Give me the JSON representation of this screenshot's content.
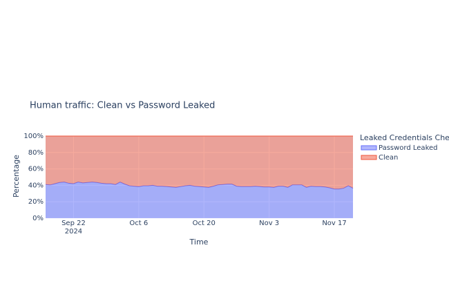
{
  "chart_data": {
    "type": "stacked-area",
    "title": "Human traffic: Clean vs Password Leaked",
    "x_label": "Time",
    "y_label": "Percentage",
    "legend_title": "Leaked Credentials Check",
    "legend": "right",
    "grid": true,
    "x": [
      "2024-09-16",
      "2024-09-17",
      "2024-09-18",
      "2024-09-19",
      "2024-09-20",
      "2024-09-21",
      "2024-09-22",
      "2024-09-23",
      "2024-09-24",
      "2024-09-25",
      "2024-09-26",
      "2024-09-27",
      "2024-09-28",
      "2024-09-29",
      "2024-09-30",
      "2024-10-01",
      "2024-10-02",
      "2024-10-03",
      "2024-10-04",
      "2024-10-05",
      "2024-10-06",
      "2024-10-07",
      "2024-10-08",
      "2024-10-09",
      "2024-10-10",
      "2024-10-11",
      "2024-10-12",
      "2024-10-13",
      "2024-10-14",
      "2024-10-15",
      "2024-10-16",
      "2024-10-17",
      "2024-10-18",
      "2024-10-19",
      "2024-10-20",
      "2024-10-21",
      "2024-10-22",
      "2024-10-23",
      "2024-10-24",
      "2024-10-25",
      "2024-10-26",
      "2024-10-27",
      "2024-10-28",
      "2024-10-29",
      "2024-10-30",
      "2024-10-31",
      "2024-11-01",
      "2024-11-02",
      "2024-11-03",
      "2024-11-04",
      "2024-11-05",
      "2024-11-06",
      "2024-11-07",
      "2024-11-08",
      "2024-11-09",
      "2024-11-10",
      "2024-11-11",
      "2024-11-12",
      "2024-11-13",
      "2024-11-14",
      "2024-11-15",
      "2024-11-16",
      "2024-11-17",
      "2024-11-18",
      "2024-11-19",
      "2024-11-20",
      "2024-11-21"
    ],
    "xlim": [
      "2024-09-16",
      "2024-11-21"
    ],
    "xticks": [
      {
        "value": "2024-09-22",
        "label": "Sep 22\n2024"
      },
      {
        "value": "2024-10-06",
        "label": "Oct 6"
      },
      {
        "value": "2024-10-20",
        "label": "Oct 20"
      },
      {
        "value": "2024-11-03",
        "label": "Nov 3"
      },
      {
        "value": "2024-11-17",
        "label": "Nov 17"
      }
    ],
    "ylim": [
      0,
      100
    ],
    "yticks": [
      {
        "value": 0,
        "label": "0%"
      },
      {
        "value": 20,
        "label": "20%"
      },
      {
        "value": 40,
        "label": "40%"
      },
      {
        "value": 60,
        "label": "60%"
      },
      {
        "value": 80,
        "label": "80%"
      },
      {
        "value": 100,
        "label": "100%"
      }
    ],
    "series": [
      {
        "name": "Password Leaked",
        "color": "#636efa",
        "values": [
          41,
          40.5,
          42,
          43.5,
          44,
          42.5,
          42,
          44,
          43,
          43.5,
          44,
          43.5,
          42.5,
          42,
          42,
          41,
          44,
          41.5,
          39.5,
          39,
          38.5,
          39.5,
          39.5,
          40,
          39,
          39,
          38.5,
          38,
          37.5,
          38.5,
          39.5,
          40,
          39,
          38.5,
          38,
          37.5,
          39,
          40.5,
          41,
          41.5,
          41.5,
          39,
          38.5,
          38.5,
          38.5,
          39,
          38.5,
          38,
          38,
          37.5,
          39,
          39,
          37.5,
          40.5,
          40.5,
          40.5,
          37.5,
          39,
          38.5,
          38.5,
          38,
          37,
          35.5,
          35.5,
          36.5,
          39.5,
          36.5
        ]
      },
      {
        "name": "Clean",
        "color": "#ef553b",
        "values": [
          59,
          59.5,
          58,
          56.5,
          56,
          57.5,
          58,
          56,
          57,
          56.5,
          56,
          56.5,
          57.5,
          58,
          58,
          59,
          56,
          58.5,
          60.5,
          61,
          61.5,
          60.5,
          60.5,
          60,
          61,
          61,
          61.5,
          62,
          62.5,
          61.5,
          60.5,
          60,
          61,
          61.5,
          62,
          62.5,
          61,
          59.5,
          59,
          58.5,
          58.5,
          61,
          61.5,
          61.5,
          61.5,
          61,
          61.5,
          62,
          62,
          62.5,
          61,
          61,
          62.5,
          59.5,
          59.5,
          59.5,
          62.5,
          61,
          61.5,
          61.5,
          62,
          63,
          64.5,
          64.5,
          63.5,
          60.5,
          63.5
        ]
      }
    ]
  }
}
